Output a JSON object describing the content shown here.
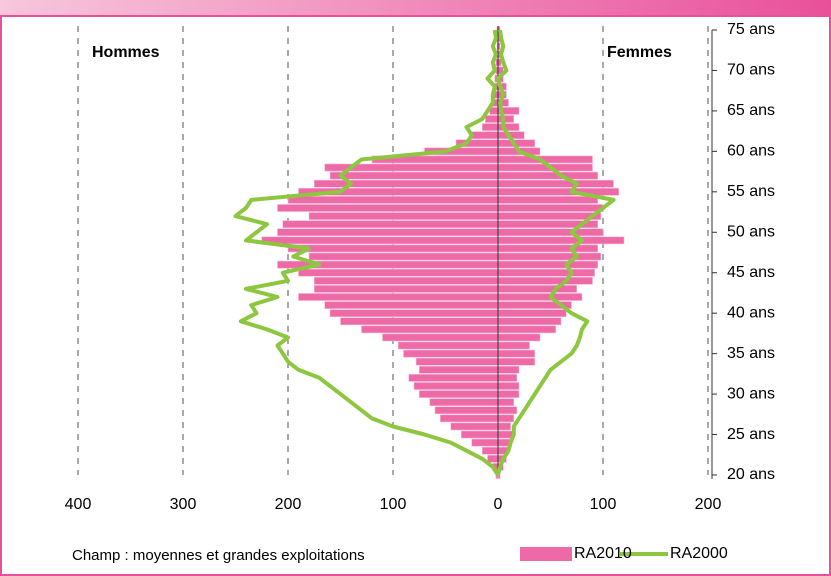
{
  "chart_data": {
    "type": "pyramid",
    "left_label": "Hommes",
    "right_label": "Femmes",
    "caption": "Champ : moyennes et grandes exploitations",
    "y": [
      20,
      21,
      22,
      23,
      24,
      25,
      26,
      27,
      28,
      29,
      30,
      31,
      32,
      33,
      34,
      35,
      36,
      37,
      38,
      39,
      40,
      41,
      42,
      43,
      44,
      45,
      46,
      47,
      48,
      49,
      50,
      51,
      52,
      53,
      54,
      55,
      56,
      57,
      58,
      59,
      60,
      61,
      62,
      63,
      64,
      65,
      66,
      67,
      68,
      69,
      70,
      71,
      72,
      73,
      74,
      75
    ],
    "series": [
      {
        "name": "RA2010",
        "kind": "bar",
        "color": "#ee6aa7",
        "left": [
          2,
          5,
          10,
          15,
          25,
          35,
          45,
          55,
          60,
          65,
          75,
          80,
          85,
          75,
          78,
          90,
          95,
          110,
          130,
          150,
          160,
          165,
          190,
          175,
          175,
          190,
          210,
          180,
          200,
          225,
          210,
          205,
          180,
          210,
          200,
          190,
          175,
          160,
          165,
          120,
          70,
          40,
          25,
          15,
          12,
          8,
          6,
          4,
          3,
          3,
          2,
          2,
          1,
          1,
          1,
          1
        ],
        "right": [
          2,
          5,
          8,
          10,
          12,
          15,
          12,
          15,
          18,
          15,
          20,
          20,
          18,
          20,
          35,
          35,
          30,
          40,
          55,
          60,
          65,
          70,
          80,
          75,
          90,
          92,
          95,
          98,
          95,
          120,
          100,
          95,
          98,
          100,
          95,
          115,
          110,
          95,
          90,
          90,
          40,
          35,
          25,
          20,
          15,
          20,
          10,
          8,
          8,
          5,
          5,
          3,
          3,
          2,
          2,
          2
        ]
      },
      {
        "name": "RA2000",
        "kind": "line",
        "color": "#8dc63f",
        "left": [
          0,
          5,
          15,
          30,
          45,
          70,
          100,
          120,
          130,
          140,
          150,
          160,
          170,
          190,
          200,
          205,
          210,
          200,
          220,
          245,
          230,
          235,
          210,
          240,
          200,
          205,
          170,
          195,
          180,
          240,
          230,
          220,
          250,
          240,
          235,
          150,
          140,
          150,
          140,
          130,
          50,
          30,
          25,
          30,
          15,
          10,
          5,
          5,
          3,
          10,
          3,
          5,
          2,
          5,
          2,
          3
        ],
        "right": [
          0,
          2,
          5,
          10,
          12,
          15,
          15,
          20,
          25,
          30,
          35,
          40,
          45,
          50,
          60,
          70,
          75,
          78,
          80,
          85,
          70,
          60,
          50,
          55,
          65,
          70,
          65,
          75,
          70,
          80,
          70,
          80,
          90,
          100,
          110,
          70,
          75,
          60,
          50,
          40,
          20,
          15,
          10,
          5,
          5,
          3,
          2,
          5,
          2,
          0,
          8,
          5,
          3,
          5,
          3,
          2
        ]
      }
    ],
    "xlim": [
      -400,
      200
    ],
    "xticks": [
      {
        "value": -400,
        "label": "400"
      },
      {
        "value": -300,
        "label": "300"
      },
      {
        "value": -200,
        "label": "200"
      },
      {
        "value": -100,
        "label": "100"
      },
      0,
      100,
      200
    ],
    "ylim": [
      20,
      75
    ],
    "yticks": [
      {
        "value": 20,
        "label": "20 ans"
      },
      {
        "value": 25,
        "label": "25 ans"
      },
      {
        "value": 30,
        "label": "30 ans"
      },
      {
        "value": 35,
        "label": "35 ans"
      },
      {
        "value": 40,
        "label": "40 ans"
      },
      {
        "value": 45,
        "label": "45 ans"
      },
      {
        "value": 50,
        "label": "50 ans"
      },
      {
        "value": 55,
        "label": "55 ans"
      },
      {
        "value": 60,
        "label": "60 ans"
      },
      {
        "value": 65,
        "label": "65 ans"
      },
      {
        "value": 70,
        "label": "70 ans"
      },
      {
        "value": 75,
        "label": "75 ans"
      }
    ],
    "grid": true
  }
}
